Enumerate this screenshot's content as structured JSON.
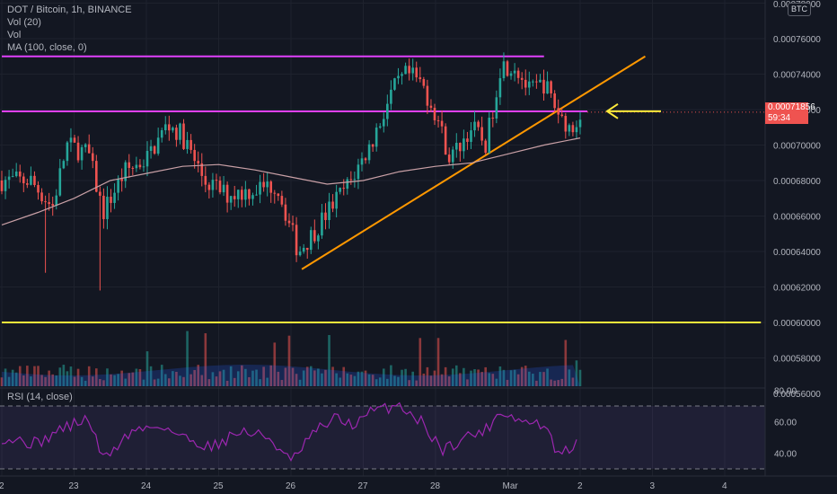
{
  "header": {
    "symbol_line": "DOT / Bitcoin, 1h, BINANCE",
    "indicators": [
      "Vol (20)",
      "Vol",
      "MA (100, close, 0)"
    ],
    "currency_badge": "BTC"
  },
  "rsi_panel": {
    "label": "RSI (14, close)",
    "axis_ticks": [
      "80.00",
      "60.00",
      "40.00"
    ],
    "upper_band": 70,
    "lower_band": 30
  },
  "price_axis": {
    "ticks": [
      "0.00076000",
      "0.00074000",
      "0.00072000",
      "0.00070000",
      "0.00068000",
      "0.00066000",
      "0.00064000",
      "0.00062000",
      "0.00060000",
      "0.00058000",
      "0.00056000"
    ],
    "top_partial": "0.00078000"
  },
  "last_price": {
    "value": "0.00071856",
    "countdown": "59:34"
  },
  "time_axis": {
    "labels": [
      "2",
      "23",
      "24",
      "25",
      "26",
      "27",
      "28",
      "Mar",
      "2",
      "3",
      "4"
    ]
  },
  "colors": {
    "background": "#131722",
    "up": "#26a69a",
    "down": "#ef5350",
    "ma": "#c9a0a6",
    "resistance": "#e040fb",
    "support": "#ffeb3b",
    "trendline": "#ff9800",
    "rsi": "#9c27b0",
    "arrow": "#ffeb3b"
  },
  "chart_data": {
    "type": "candlestick",
    "title": "DOT / Bitcoin, 1h, BINANCE",
    "ylim": [
      0.000555,
      0.000782
    ],
    "x_labels": [
      "2",
      "23",
      "24",
      "25",
      "26",
      "27",
      "28",
      "Mar",
      "2",
      "3",
      "4"
    ],
    "price_waypoints": [
      {
        "day": 22.0,
        "price": 0.00068
      },
      {
        "day": 22.4,
        "price": 0.00068
      },
      {
        "day": 22.7,
        "price": 0.000665
      },
      {
        "day": 22.9,
        "price": 0.0007
      },
      {
        "day": 23.2,
        "price": 0.000695
      },
      {
        "day": 23.4,
        "price": 0.000662
      },
      {
        "day": 23.7,
        "price": 0.000685
      },
      {
        "day": 24.0,
        "price": 0.000692
      },
      {
        "day": 24.3,
        "price": 0.000712
      },
      {
        "day": 24.5,
        "price": 0.000705
      },
      {
        "day": 24.8,
        "price": 0.00068
      },
      {
        "day": 25.1,
        "price": 0.000672
      },
      {
        "day": 25.5,
        "price": 0.000675
      },
      {
        "day": 25.8,
        "price": 0.000678
      },
      {
        "day": 26.1,
        "price": 0.00064
      },
      {
        "day": 26.3,
        "price": 0.00065
      },
      {
        "day": 26.6,
        "price": 0.000668
      },
      {
        "day": 26.8,
        "price": 0.000678
      },
      {
        "day": 27.1,
        "price": 0.0007
      },
      {
        "day": 27.4,
        "price": 0.00073
      },
      {
        "day": 27.6,
        "price": 0.00074
      },
      {
        "day": 27.8,
        "price": 0.000735
      },
      {
        "day": 28.0,
        "price": 0.000718
      },
      {
        "day": 28.2,
        "price": 0.000692
      },
      {
        "day": 28.5,
        "price": 0.00071
      },
      {
        "day": 28.7,
        "price": 0.0007
      },
      {
        "day": 28.9,
        "price": 0.000745
      },
      {
        "day": 29.1,
        "price": 0.000745
      },
      {
        "day": 29.3,
        "price": 0.00073
      },
      {
        "day": 29.5,
        "price": 0.000735
      },
      {
        "day": 29.7,
        "price": 0.000718
      },
      {
        "day": 29.9,
        "price": 0.000708
      },
      {
        "day": 30.0,
        "price": 0.000719
      }
    ],
    "moving_average": [
      {
        "day": 22.0,
        "value": 0.000655
      },
      {
        "day": 22.5,
        "value": 0.000662
      },
      {
        "day": 23.0,
        "value": 0.00067
      },
      {
        "day": 23.5,
        "value": 0.00068
      },
      {
        "day": 24.0,
        "value": 0.000684
      },
      {
        "day": 24.5,
        "value": 0.000688
      },
      {
        "day": 25.0,
        "value": 0.000689
      },
      {
        "day": 25.5,
        "value": 0.000686
      },
      {
        "day": 26.0,
        "value": 0.000682
      },
      {
        "day": 26.5,
        "value": 0.000678
      },
      {
        "day": 27.0,
        "value": 0.00068
      },
      {
        "day": 27.5,
        "value": 0.000685
      },
      {
        "day": 28.0,
        "value": 0.000688
      },
      {
        "day": 28.5,
        "value": 0.00069
      },
      {
        "day": 29.0,
        "value": 0.000695
      },
      {
        "day": 29.5,
        "value": 0.0007
      },
      {
        "day": 30.0,
        "value": 0.000704
      }
    ],
    "horizontal_lines": [
      {
        "price": 0.00075,
        "from_day": 22.0,
        "to_day": 29.5,
        "color": "#e040fb"
      },
      {
        "price": 0.000719,
        "from_day": 22.0,
        "to_day": 30.1,
        "color": "#e040fb"
      },
      {
        "price": 0.0006,
        "from_day": 22.0,
        "to_day": 32.5,
        "color": "#ffeb3b"
      }
    ],
    "trendline": {
      "from": {
        "day": 26.15,
        "price": 0.00063
      },
      "to": {
        "day": 30.9,
        "price": 0.00075
      }
    },
    "rsi_waypoints": [
      {
        "day": 22.0,
        "value": 50
      },
      {
        "day": 22.5,
        "value": 46
      },
      {
        "day": 22.8,
        "value": 55
      },
      {
        "day": 23.2,
        "value": 62
      },
      {
        "day": 23.4,
        "value": 36
      },
      {
        "day": 23.8,
        "value": 54
      },
      {
        "day": 24.2,
        "value": 58
      },
      {
        "day": 24.5,
        "value": 50
      },
      {
        "day": 24.9,
        "value": 44
      },
      {
        "day": 25.3,
        "value": 54
      },
      {
        "day": 25.7,
        "value": 50
      },
      {
        "day": 26.0,
        "value": 34
      },
      {
        "day": 26.3,
        "value": 52
      },
      {
        "day": 26.6,
        "value": 62
      },
      {
        "day": 26.9,
        "value": 58
      },
      {
        "day": 27.1,
        "value": 66
      },
      {
        "day": 27.5,
        "value": 71
      },
      {
        "day": 27.8,
        "value": 60
      },
      {
        "day": 28.1,
        "value": 42
      },
      {
        "day": 28.4,
        "value": 50
      },
      {
        "day": 28.7,
        "value": 55
      },
      {
        "day": 28.9,
        "value": 67
      },
      {
        "day": 29.2,
        "value": 60
      },
      {
        "day": 29.5,
        "value": 58
      },
      {
        "day": 29.7,
        "value": 38
      },
      {
        "day": 29.9,
        "value": 44
      },
      {
        "day": 30.0,
        "value": 47
      }
    ],
    "rsi_ylim": [
      25,
      82
    ]
  }
}
